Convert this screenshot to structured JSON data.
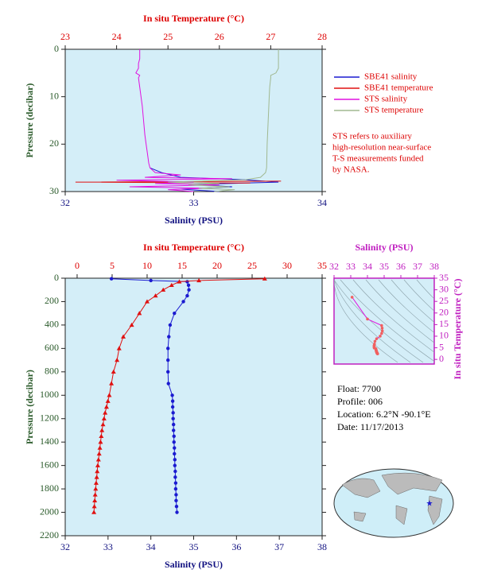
{
  "chart_data": [
    {
      "type": "profile",
      "x2label": "In situ Temperature (°C)",
      "xlabel": "Salinity (PSU)",
      "ylabel": "Pressure (decibar)",
      "xlim": [
        32,
        34
      ],
      "xticks": [
        32,
        33,
        34
      ],
      "x2lim": [
        23,
        28
      ],
      "x2ticks": [
        23,
        24,
        25,
        26,
        27,
        28
      ],
      "ylim": [
        0,
        30
      ],
      "yticks": [
        0,
        10,
        20,
        30
      ],
      "y_reversed": true,
      "series": [
        {
          "name": "SBE41 salinity",
          "color": "#1a1ad0",
          "axis": "x",
          "pressure": [
            25,
            26,
            27,
            27.5,
            28,
            28.5,
            29,
            29.5,
            30
          ],
          "values": [
            32.66,
            32.75,
            32.9,
            33.4,
            33.66,
            33.0,
            33.3,
            32.9,
            33.2
          ]
        },
        {
          "name": "SBE41 temperature",
          "color": "#e01010",
          "axis": "x2",
          "pressure": [
            27.8,
            28,
            28.2
          ],
          "values": [
            27.2,
            23.2,
            26.6
          ]
        },
        {
          "name": "STS salinity",
          "color": "#e010e0",
          "axis": "x",
          "pressure": [
            0,
            1,
            2,
            3,
            4,
            5,
            5.5,
            6,
            8,
            10,
            12,
            15,
            18,
            20,
            22,
            24,
            25,
            26,
            26.5,
            27,
            27.3,
            27.6,
            28,
            28.3,
            28.6,
            29,
            29.3,
            29.6,
            30
          ],
          "values": [
            32.58,
            32.58,
            32.58,
            32.57,
            32.57,
            32.55,
            32.58,
            32.57,
            32.58,
            32.59,
            32.6,
            32.61,
            32.62,
            32.63,
            32.64,
            32.65,
            32.66,
            32.7,
            32.9,
            32.62,
            33.3,
            32.4,
            33.0,
            32.7,
            33.2,
            32.5,
            33.1,
            32.8,
            33.0
          ]
        },
        {
          "name": "STS temperature",
          "color": "#a0b890",
          "axis": "x2",
          "pressure": [
            0,
            2,
            4,
            5,
            5.5,
            6,
            8,
            10,
            15,
            20,
            25,
            26,
            27,
            27.5,
            28,
            28.3,
            28.6,
            29,
            29.3,
            29.6,
            30
          ],
          "values": [
            27.15,
            27.15,
            27.15,
            27.1,
            27.0,
            27.0,
            26.98,
            26.97,
            26.95,
            26.93,
            26.92,
            26.9,
            26.8,
            26.5,
            25.0,
            26.0,
            25.4,
            26.2,
            25.6,
            26.3,
            25.9
          ]
        }
      ],
      "note": [
        "STS refers to auxiliary",
        "high-resolution near-surface",
        "T-S measurements funded",
        "by NASA."
      ]
    },
    {
      "type": "profile",
      "x2label": "In situ Temperature (°C)",
      "xlabel": "Salinity (PSU)",
      "ylabel": "Pressure (decibar)",
      "xlim": [
        32,
        38
      ],
      "xticks": [
        32,
        33,
        34,
        35,
        36,
        37,
        38
      ],
      "x2lim": [
        -1.7,
        35
      ],
      "x2ticks": [
        0,
        5,
        10,
        15,
        20,
        25,
        30,
        35
      ],
      "ylim": [
        0,
        2200
      ],
      "yticks": [
        0,
        200,
        400,
        600,
        800,
        1000,
        1200,
        1400,
        1600,
        1800,
        2000,
        2200
      ],
      "y_reversed": true,
      "pressure": [
        5,
        20,
        30,
        60,
        100,
        150,
        200,
        300,
        400,
        500,
        600,
        700,
        800,
        900,
        1000,
        1050,
        1100,
        1150,
        1200,
        1250,
        1300,
        1350,
        1400,
        1450,
        1500,
        1550,
        1600,
        1650,
        1700,
        1750,
        1800,
        1850,
        1900,
        1950,
        2000
      ],
      "series": [
        {
          "color": "#1a1ad0",
          "axis": "x",
          "marker": "circle",
          "values": [
            33.08,
            34.0,
            34.85,
            34.88,
            34.89,
            34.85,
            34.76,
            34.55,
            34.45,
            34.42,
            34.4,
            34.4,
            34.4,
            34.41,
            34.5,
            34.51,
            34.51,
            34.52,
            34.52,
            34.53,
            34.53,
            34.54,
            34.54,
            34.55,
            34.55,
            34.56,
            34.56,
            34.57,
            34.57,
            34.58,
            34.58,
            34.59,
            34.59,
            34.6,
            34.61
          ]
        },
        {
          "color": "#e01010",
          "axis": "x2",
          "marker": "triangle",
          "values": [
            26.8,
            17.4,
            14.6,
            13.5,
            12.3,
            11.2,
            10.0,
            8.9,
            7.8,
            6.6,
            6.0,
            5.7,
            5.2,
            4.9,
            4.6,
            4.4,
            4.2,
            4.0,
            3.85,
            3.7,
            3.55,
            3.45,
            3.35,
            3.25,
            3.15,
            3.05,
            2.95,
            2.87,
            2.8,
            2.72,
            2.65,
            2.58,
            2.52,
            2.46,
            2.4
          ]
        }
      ]
    },
    {
      "type": "ts",
      "xlabel": "Salinity (PSU)",
      "ylabel": "In situ Temperature (°C)",
      "xlim": [
        32,
        38
      ],
      "xticks": [
        32,
        33,
        34,
        35,
        36,
        37,
        38
      ],
      "ylim": [
        -2,
        35
      ],
      "yticks": [
        0,
        5,
        10,
        15,
        20,
        25,
        30,
        35
      ],
      "line_color": "#e010e0",
      "point_color": "#f06060"
    }
  ],
  "float_info": [
    "Float:  7700",
    "Profile:  006",
    "Location:  6.2°N  -90.1°E",
    "Date:  11/17/2013"
  ]
}
